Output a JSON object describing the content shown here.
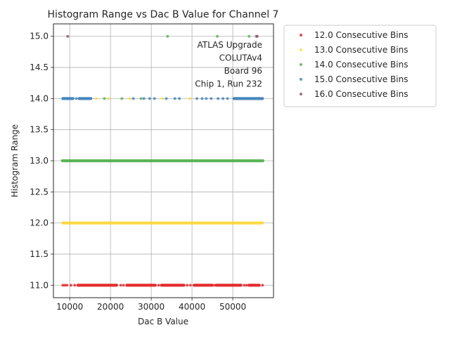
{
  "chart_data": {
    "type": "scatter",
    "title": "Histogram Range vs Dac B Value for Channel 7",
    "xlabel": "Dac B Value",
    "ylabel": "Histogram Range",
    "xlim": [
      6000,
      60000
    ],
    "ylim": [
      10.8,
      15.2
    ],
    "x_ticks": [
      10000,
      20000,
      30000,
      40000,
      50000
    ],
    "y_ticks": [
      11.0,
      11.5,
      12.0,
      12.5,
      13.0,
      13.5,
      14.0,
      14.5,
      15.0
    ],
    "grid": true,
    "legend_position": "outside-upper-right",
    "annotation": [
      "ATLAS Upgrade",
      "COLUTAv4",
      "Board 96",
      "Chip 1, Run 232"
    ],
    "series": [
      {
        "name": "12.0 Consecutive Bins",
        "color": "#e41a1c",
        "segments": [
          {
            "y": 11.0,
            "x_start": 12000,
            "x_end": 21500
          },
          {
            "y": 11.0,
            "x_start": 24000,
            "x_end": 31000
          },
          {
            "y": 11.0,
            "x_start": 32500,
            "x_end": 38000
          },
          {
            "y": 11.0,
            "x_start": 40500,
            "x_end": 45000
          },
          {
            "y": 11.0,
            "x_start": 46000,
            "x_end": 52000
          },
          {
            "y": 11.0,
            "x_start": 54000,
            "x_end": 56500
          }
        ],
        "points": [
          {
            "x": 8300,
            "y": 11.0
          },
          {
            "x": 8800,
            "y": 11.0
          },
          {
            "x": 9300,
            "y": 11.0
          },
          {
            "x": 10300,
            "y": 11.0
          },
          {
            "x": 11200,
            "y": 11.0
          },
          {
            "x": 22500,
            "y": 11.0
          },
          {
            "x": 23200,
            "y": 11.0
          },
          {
            "x": 31800,
            "y": 11.0
          },
          {
            "x": 38800,
            "y": 11.0
          },
          {
            "x": 39600,
            "y": 11.0
          },
          {
            "x": 45600,
            "y": 11.0
          },
          {
            "x": 52800,
            "y": 11.0
          },
          {
            "x": 53400,
            "y": 11.0
          },
          {
            "x": 57300,
            "y": 11.0
          }
        ]
      },
      {
        "name": "13.0 Consecutive Bins",
        "color": "#fdd835",
        "segments": [
          {
            "y": 12.0,
            "x_start": 8300,
            "x_end": 57300
          }
        ],
        "points": [
          {
            "x": 16500,
            "y": 14.0
          },
          {
            "x": 19500,
            "y": 14.0
          },
          {
            "x": 24800,
            "y": 14.0
          },
          {
            "x": 32800,
            "y": 14.0
          },
          {
            "x": 39500,
            "y": 14.0
          },
          {
            "x": 50500,
            "y": 14.0
          }
        ]
      },
      {
        "name": "14.0 Consecutive Bins",
        "color": "#4daf4a",
        "segments": [
          {
            "y": 13.0,
            "x_start": 8200,
            "x_end": 57400
          }
        ],
        "points": [
          {
            "x": 18500,
            "y": 14.0
          },
          {
            "x": 22800,
            "y": 14.0
          },
          {
            "x": 27500,
            "y": 14.0
          },
          {
            "x": 34000,
            "y": 15.0
          },
          {
            "x": 46200,
            "y": 15.0
          },
          {
            "x": 54000,
            "y": 15.0
          }
        ]
      },
      {
        "name": "15.0 Consecutive Bins",
        "color": "#377eb8",
        "segments": [
          {
            "y": 14.0,
            "x_start": 8300,
            "x_end": 10800
          },
          {
            "y": 14.0,
            "x_start": 12300,
            "x_end": 15200
          },
          {
            "y": 14.0,
            "x_start": 50300,
            "x_end": 57300
          }
        ],
        "points": [
          {
            "x": 11600,
            "y": 14.0
          },
          {
            "x": 25600,
            "y": 14.0
          },
          {
            "x": 28200,
            "y": 14.0
          },
          {
            "x": 29600,
            "y": 14.0
          },
          {
            "x": 30800,
            "y": 14.0
          },
          {
            "x": 33700,
            "y": 14.0
          },
          {
            "x": 35800,
            "y": 14.0
          },
          {
            "x": 36900,
            "y": 14.0
          },
          {
            "x": 41200,
            "y": 14.0
          },
          {
            "x": 42500,
            "y": 14.0
          },
          {
            "x": 43500,
            "y": 14.0
          },
          {
            "x": 44700,
            "y": 14.0
          },
          {
            "x": 46400,
            "y": 14.0
          },
          {
            "x": 47600,
            "y": 14.0
          },
          {
            "x": 48700,
            "y": 14.0
          }
        ]
      },
      {
        "name": "16.0 Consecutive Bins",
        "color": "#8e4a5e",
        "segments": [],
        "points": [
          {
            "x": 9500,
            "y": 15.0
          },
          {
            "x": 55800,
            "y": 15.0
          },
          {
            "x": 56000,
            "y": 15.0
          }
        ]
      }
    ]
  }
}
